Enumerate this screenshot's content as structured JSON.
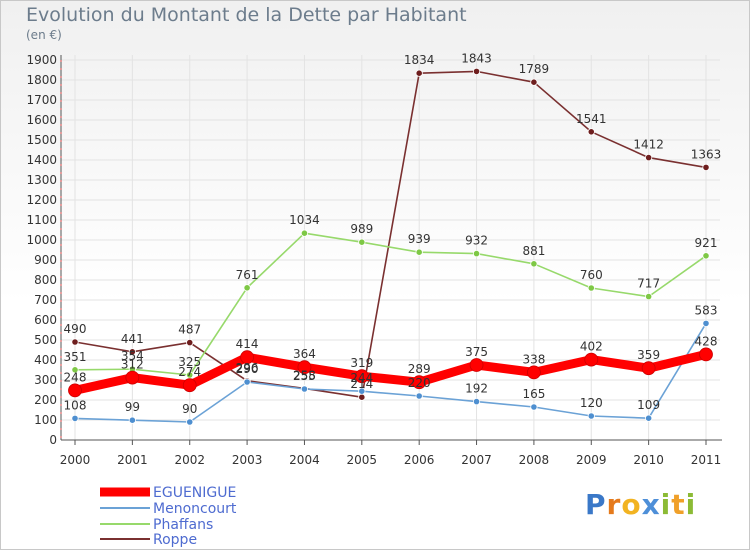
{
  "chart_data": {
    "type": "line",
    "title": "Evolution du Montant de la Dette par Habitant",
    "subtitle": "(en €)",
    "categories": [
      "2000",
      "2001",
      "2002",
      "2003",
      "2004",
      "2005",
      "2006",
      "2007",
      "2008",
      "2009",
      "2010",
      "2011"
    ],
    "y_ticks": [
      "0",
      "100",
      "200",
      "300",
      "400",
      "500",
      "600",
      "700",
      "800",
      "900",
      "1000",
      "1100",
      "1200",
      "1300",
      "1400",
      "1500",
      "1600",
      "1700",
      "1800",
      "1900"
    ],
    "ylim": [
      0,
      1900
    ],
    "series": [
      {
        "name": "EGUENIGUE",
        "color": "#ff0000",
        "values": [
          248,
          312,
          274,
          414,
          364,
          319,
          289,
          375,
          338,
          402,
          359,
          428
        ],
        "labels": [
          "248",
          "312",
          "274",
          "414",
          "364",
          "319",
          "289",
          "375",
          "338",
          "402",
          "359",
          "428"
        ]
      },
      {
        "name": "Menoncourt",
        "color": "#6ba2d6",
        "values": [
          108,
          99,
          90,
          290,
          255,
          244,
          220,
          192,
          165,
          120,
          109,
          583
        ],
        "labels": [
          "108",
          "99",
          "90",
          "290",
          "255",
          "244",
          "220",
          "192",
          "165",
          "120",
          "109",
          "583"
        ]
      },
      {
        "name": "Phaffans",
        "color": "#97d96b",
        "values": [
          351,
          354,
          325,
          761,
          1034,
          989,
          939,
          932,
          881,
          760,
          717,
          921
        ],
        "labels": [
          "351",
          "354",
          "325",
          "761",
          "1034",
          "989",
          "939",
          "932",
          "881",
          "760",
          "717",
          "921"
        ]
      },
      {
        "name": "Roppe",
        "color": "#7a3030",
        "values": [
          490,
          441,
          487,
          296,
          258,
          214,
          1834,
          1843,
          1789,
          1541,
          1412,
          1363
        ],
        "labels": [
          "490",
          "441",
          "487",
          "296",
          "258",
          "214",
          "1834",
          "1843",
          "1789",
          "1541",
          "1412",
          "1363"
        ]
      }
    ]
  },
  "brand": {
    "p": "P",
    "r": "r",
    "o": "o",
    "x": "x",
    "i": "i",
    "t": "t",
    "i2": "i"
  }
}
